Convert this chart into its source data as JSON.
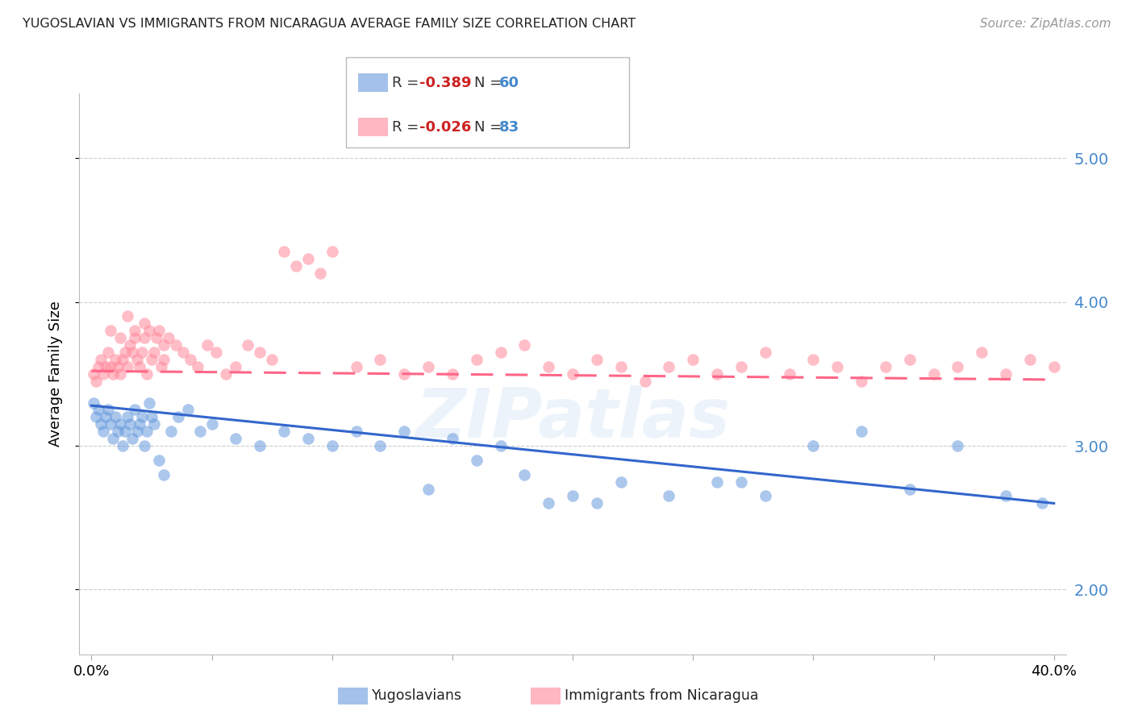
{
  "title": "YUGOSLAVIAN VS IMMIGRANTS FROM NICARAGUA AVERAGE FAMILY SIZE CORRELATION CHART",
  "source": "Source: ZipAtlas.com",
  "ylabel": "Average Family Size",
  "yticks": [
    2.0,
    3.0,
    4.0,
    5.0
  ],
  "watermark": "ZIPatlas",
  "blue_color": "#6699dd",
  "pink_color": "#ff8899",
  "blue_line_color": "#3366cc",
  "pink_line_color": "#ff6688",
  "background_color": "#ffffff",
  "grid_color": "#cccccc",
  "ylim": [
    1.55,
    5.45
  ],
  "xlim": [
    -0.005,
    0.405
  ],
  "blue_x": [
    0.001,
    0.002,
    0.003,
    0.004,
    0.005,
    0.006,
    0.007,
    0.008,
    0.009,
    0.01,
    0.011,
    0.012,
    0.013,
    0.014,
    0.015,
    0.016,
    0.017,
    0.018,
    0.019,
    0.02,
    0.021,
    0.022,
    0.023,
    0.024,
    0.025,
    0.026,
    0.028,
    0.03,
    0.033,
    0.036,
    0.04,
    0.045,
    0.05,
    0.06,
    0.07,
    0.08,
    0.09,
    0.1,
    0.11,
    0.12,
    0.13,
    0.14,
    0.15,
    0.16,
    0.17,
    0.18,
    0.2,
    0.22,
    0.24,
    0.26,
    0.28,
    0.3,
    0.32,
    0.34,
    0.36,
    0.38,
    0.395,
    0.27,
    0.19,
    0.21
  ],
  "blue_y": [
    3.3,
    3.2,
    3.25,
    3.15,
    3.1,
    3.2,
    3.25,
    3.15,
    3.05,
    3.2,
    3.1,
    3.15,
    3.0,
    3.1,
    3.2,
    3.15,
    3.05,
    3.25,
    3.1,
    3.15,
    3.2,
    3.0,
    3.1,
    3.3,
    3.2,
    3.15,
    2.9,
    2.8,
    3.1,
    3.2,
    3.25,
    3.1,
    3.15,
    3.05,
    3.0,
    3.1,
    3.05,
    3.0,
    3.1,
    3.0,
    3.1,
    2.7,
    3.05,
    2.9,
    3.0,
    2.8,
    2.65,
    2.75,
    2.65,
    2.75,
    2.65,
    3.0,
    3.1,
    2.7,
    3.0,
    2.65,
    2.6,
    2.75,
    2.6,
    2.6
  ],
  "pink_x": [
    0.001,
    0.002,
    0.003,
    0.004,
    0.005,
    0.006,
    0.007,
    0.008,
    0.009,
    0.01,
    0.011,
    0.012,
    0.013,
    0.014,
    0.015,
    0.016,
    0.017,
    0.018,
    0.019,
    0.02,
    0.021,
    0.022,
    0.023,
    0.024,
    0.025,
    0.026,
    0.027,
    0.028,
    0.029,
    0.03,
    0.032,
    0.035,
    0.038,
    0.041,
    0.044,
    0.048,
    0.052,
    0.056,
    0.06,
    0.065,
    0.07,
    0.075,
    0.08,
    0.085,
    0.09,
    0.095,
    0.1,
    0.11,
    0.12,
    0.13,
    0.14,
    0.15,
    0.16,
    0.17,
    0.18,
    0.19,
    0.2,
    0.21,
    0.22,
    0.23,
    0.24,
    0.25,
    0.26,
    0.27,
    0.28,
    0.29,
    0.3,
    0.31,
    0.32,
    0.33,
    0.34,
    0.35,
    0.36,
    0.37,
    0.38,
    0.39,
    0.4,
    0.015,
    0.022,
    0.018,
    0.012,
    0.008,
    0.03
  ],
  "pink_y": [
    3.5,
    3.45,
    3.55,
    3.6,
    3.5,
    3.55,
    3.65,
    3.55,
    3.5,
    3.6,
    3.55,
    3.5,
    3.6,
    3.65,
    3.55,
    3.7,
    3.65,
    3.75,
    3.6,
    3.55,
    3.65,
    3.75,
    3.5,
    3.8,
    3.6,
    3.65,
    3.75,
    3.8,
    3.55,
    3.6,
    3.75,
    3.7,
    3.65,
    3.6,
    3.55,
    3.7,
    3.65,
    3.5,
    3.55,
    3.7,
    3.65,
    3.6,
    4.35,
    4.25,
    4.3,
    4.2,
    4.35,
    3.55,
    3.6,
    3.5,
    3.55,
    3.5,
    3.6,
    3.65,
    3.7,
    3.55,
    3.5,
    3.6,
    3.55,
    3.45,
    3.55,
    3.6,
    3.5,
    3.55,
    3.65,
    3.5,
    3.6,
    3.55,
    3.45,
    3.55,
    3.6,
    3.5,
    3.55,
    3.65,
    3.5,
    3.6,
    3.55,
    3.9,
    3.85,
    3.8,
    3.75,
    3.8,
    3.7
  ],
  "blue_trend_x": [
    0.0,
    0.4
  ],
  "blue_trend_y": [
    3.28,
    2.6
  ],
  "pink_trend_x": [
    0.0,
    0.4
  ],
  "pink_trend_y": [
    3.52,
    3.46
  ]
}
